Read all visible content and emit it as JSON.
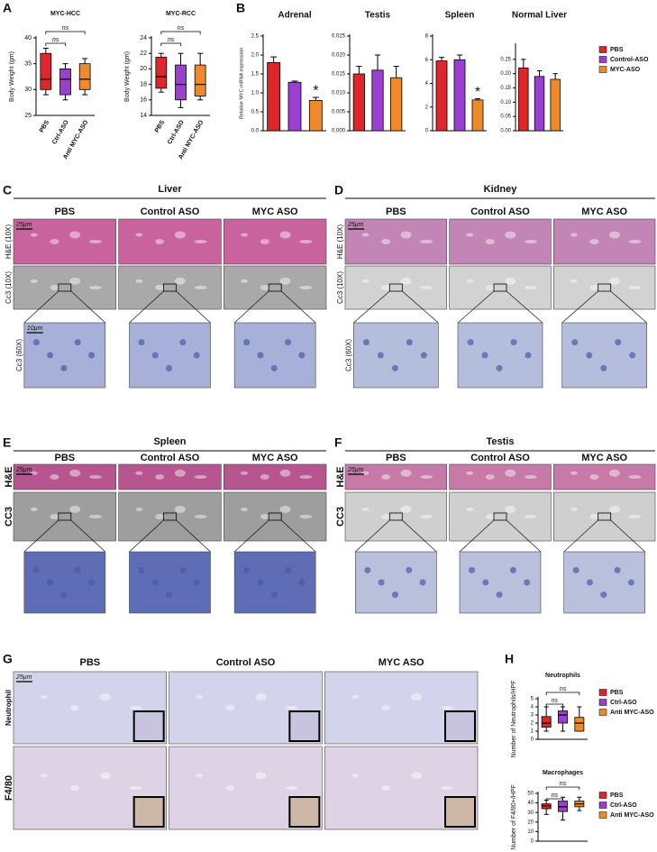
{
  "chart_panel_letters": [
    "A",
    "B",
    "H"
  ],
  "chart_data": [
    {
      "type": "box",
      "title": "MYC-HCC",
      "y_label": "Body Weight (gm)",
      "categories": [
        "PBS",
        "Ctrl-ASO",
        "Anti MYC-ASO"
      ],
      "colors": [
        "#e0262a",
        "#9b3fd0",
        "#ef8a2a"
      ],
      "whisker_low": [
        29,
        28,
        29
      ],
      "q1": [
        30,
        29,
        30
      ],
      "median": [
        32,
        32,
        32
      ],
      "q3": [
        37,
        34,
        35
      ],
      "whisker_high": [
        38,
        35,
        36
      ],
      "ylim": [
        25,
        40
      ],
      "yticks": [
        25,
        30,
        35,
        40
      ],
      "comparisons": [
        {
          "label": "ns",
          "between": [
            "PBS",
            "Ctrl-ASO"
          ]
        },
        {
          "label": "ns",
          "between": [
            "PBS",
            "Anti MYC-ASO"
          ]
        }
      ]
    },
    {
      "type": "box",
      "title": "MYC-RCC",
      "y_label": "Body Weight (gm)",
      "categories": [
        "PBS",
        "Ctrl-ASO",
        "Anti MYC-ASO"
      ],
      "colors": [
        "#e0262a",
        "#9b3fd0",
        "#ef8a2a"
      ],
      "whisker_low": [
        17,
        15,
        16
      ],
      "q1": [
        17.5,
        16,
        16.5
      ],
      "median": [
        19,
        18,
        18
      ],
      "q3": [
        21.5,
        20.5,
        20.5
      ],
      "whisker_high": [
        22,
        22,
        22
      ],
      "ylim": [
        14,
        24
      ],
      "yticks": [
        14,
        16,
        18,
        20,
        22,
        24
      ],
      "comparisons": [
        {
          "label": "ns",
          "between": [
            "PBS",
            "Ctrl-ASO"
          ]
        },
        {
          "label": "ns",
          "between": [
            "PBS",
            "Anti MYC-ASO"
          ]
        }
      ]
    },
    {
      "type": "bar",
      "title": "Adrenal",
      "y_label": "Relative MYC mRNA expression",
      "categories": [
        null,
        null,
        null
      ],
      "colors": [
        "#e0262a",
        "#9b3fd0",
        "#ef8a2a"
      ],
      "values": [
        1.8,
        1.28,
        0.8
      ],
      "errors": [
        0.15,
        0.03,
        0.08
      ],
      "markers": [
        null,
        null,
        "*"
      ],
      "ylim": [
        0,
        2.5
      ],
      "yticks": [
        {
          "value": 0,
          "label": "0.0"
        },
        0.5,
        {
          "value": 1,
          "label": "1.0"
        },
        1.5,
        {
          "value": 2,
          "label": "2.0"
        },
        2.5
      ]
    },
    {
      "type": "bar",
      "title": "Testis",
      "categories": [
        null,
        null,
        null
      ],
      "colors": [
        "#e0262a",
        "#9b3fd0",
        "#ef8a2a"
      ],
      "values": [
        0.015,
        0.016,
        0.014
      ],
      "errors": [
        0.002,
        0.004,
        0.003
      ],
      "markers": [
        null,
        null,
        null
      ],
      "ylim": [
        0,
        0.025
      ],
      "yticks": [
        {
          "value": 0,
          "label": "0.000"
        },
        0.005,
        {
          "value": 0.01,
          "label": "0.010"
        },
        0.015,
        {
          "value": 0.02,
          "label": "0.020"
        },
        0.025
      ]
    },
    {
      "type": "bar",
      "title": "Spleen",
      "categories": [
        null,
        null,
        null
      ],
      "colors": [
        "#e0262a",
        "#9b3fd0",
        "#ef8a2a"
      ],
      "values": [
        5.9,
        6.0,
        2.6
      ],
      "errors": [
        0.3,
        0.4,
        0.1
      ],
      "markers": [
        null,
        null,
        "*"
      ],
      "ylim": [
        0,
        8
      ],
      "yticks": [
        0,
        2,
        4,
        6,
        8
      ]
    },
    {
      "type": "bar",
      "title": "Normal Liver",
      "categories": [
        "PBS",
        "Control-ASO",
        "MYC-ASO"
      ],
      "legend": true,
      "colors": [
        "#e0262a",
        "#9b3fd0",
        "#ef8a2a"
      ],
      "values": [
        0.22,
        0.19,
        0.18
      ],
      "errors": [
        0.03,
        0.02,
        0.02
      ],
      "markers": [
        null,
        null,
        null
      ],
      "ylim": [
        0,
        0.3
      ],
      "yticks": [
        {
          "value": 0,
          "label": "0.00"
        },
        0.05,
        {
          "value": 0.1,
          "label": "0.10"
        },
        0.15,
        {
          "value": 0.2,
          "label": "0.20"
        },
        0.25
      ]
    },
    {
      "type": "box",
      "title": "Neutrophils",
      "y_label": "Number of Neutrophils/HPF",
      "categories": [
        "PBS",
        "Ctrl-ASO",
        "Anti MYC-ASO"
      ],
      "legend": true,
      "colors": [
        "#e0262a",
        "#9b3fd0",
        "#ef8a2a"
      ],
      "whisker_low": [
        1,
        1,
        1
      ],
      "q1": [
        1.5,
        2,
        1
      ],
      "median": [
        2,
        3,
        2
      ],
      "q3": [
        2.8,
        3.5,
        2.7
      ],
      "whisker_high": [
        4,
        4,
        4
      ],
      "ylim": [
        0,
        5
      ],
      "yticks": [
        0,
        1,
        2,
        3,
        4,
        5
      ],
      "comparisons": [
        {
          "label": "ns",
          "between": [
            "PBS",
            "Ctrl-ASO"
          ]
        },
        {
          "label": "ns",
          "between": [
            "PBS",
            "Anti MYC-ASO"
          ]
        }
      ]
    },
    {
      "type": "box",
      "title": "Macrophages",
      "y_label": "Number of F4/80+/HPF",
      "categories": [
        "PBS",
        "Ctrl-ASO",
        "Anti MYC-ASO"
      ],
      "legend": true,
      "colors": [
        "#e0262a",
        "#9b3fd0",
        "#ef8a2a"
      ],
      "whisker_low": [
        28,
        22,
        32
      ],
      "q1": [
        34,
        31,
        36
      ],
      "median": [
        37,
        36,
        39
      ],
      "q3": [
        39,
        42,
        42
      ],
      "whisker_high": [
        43,
        46,
        46
      ],
      "ylim": [
        0,
        50
      ],
      "yticks": [
        0,
        10,
        20,
        30,
        40,
        50
      ],
      "comparisons": [
        {
          "label": "ns",
          "between": [
            "PBS",
            "Ctrl-ASO"
          ]
        },
        {
          "label": "ns",
          "between": [
            "PBS",
            "Anti MYC-ASO"
          ]
        }
      ]
    }
  ],
  "tissue_panels": [
    {
      "letter": "C",
      "title": "Liver",
      "columns": [
        "PBS",
        "Control ASO",
        "MYC ASO"
      ],
      "rows": [
        "H&E (10X)",
        "Cc3 (10X)",
        "Cc3 (60X)"
      ],
      "scale_bars": [
        "25μm",
        "10μm"
      ]
    },
    {
      "letter": "D",
      "title": "Kidney",
      "columns": [
        "PBS",
        "Control ASO",
        "MYC ASO"
      ],
      "rows": [
        "H&E (10X)",
        "Cc3 (10X)",
        "Cc3 (60X)"
      ],
      "scale_bars": [
        "25μm"
      ]
    },
    {
      "letter": "E",
      "title": "Spleen",
      "columns": [
        "PBS",
        "Control ASO",
        "MYC ASO"
      ],
      "rows": [
        "H&E",
        "CC3"
      ],
      "scale_bars": [
        "25μm"
      ]
    },
    {
      "letter": "F",
      "title": "Testis",
      "columns": [
        "PBS",
        "Control ASO",
        "MYC ASO"
      ],
      "rows": [
        "H&E",
        "CC3"
      ],
      "scale_bars": [
        "25μm"
      ]
    },
    {
      "letter": "G",
      "columns": [
        "PBS",
        "Control ASO",
        "MYC ASO"
      ],
      "rows": [
        "Neutrophil",
        "F4/80"
      ],
      "scale_bars": [
        "25μm"
      ]
    }
  ]
}
